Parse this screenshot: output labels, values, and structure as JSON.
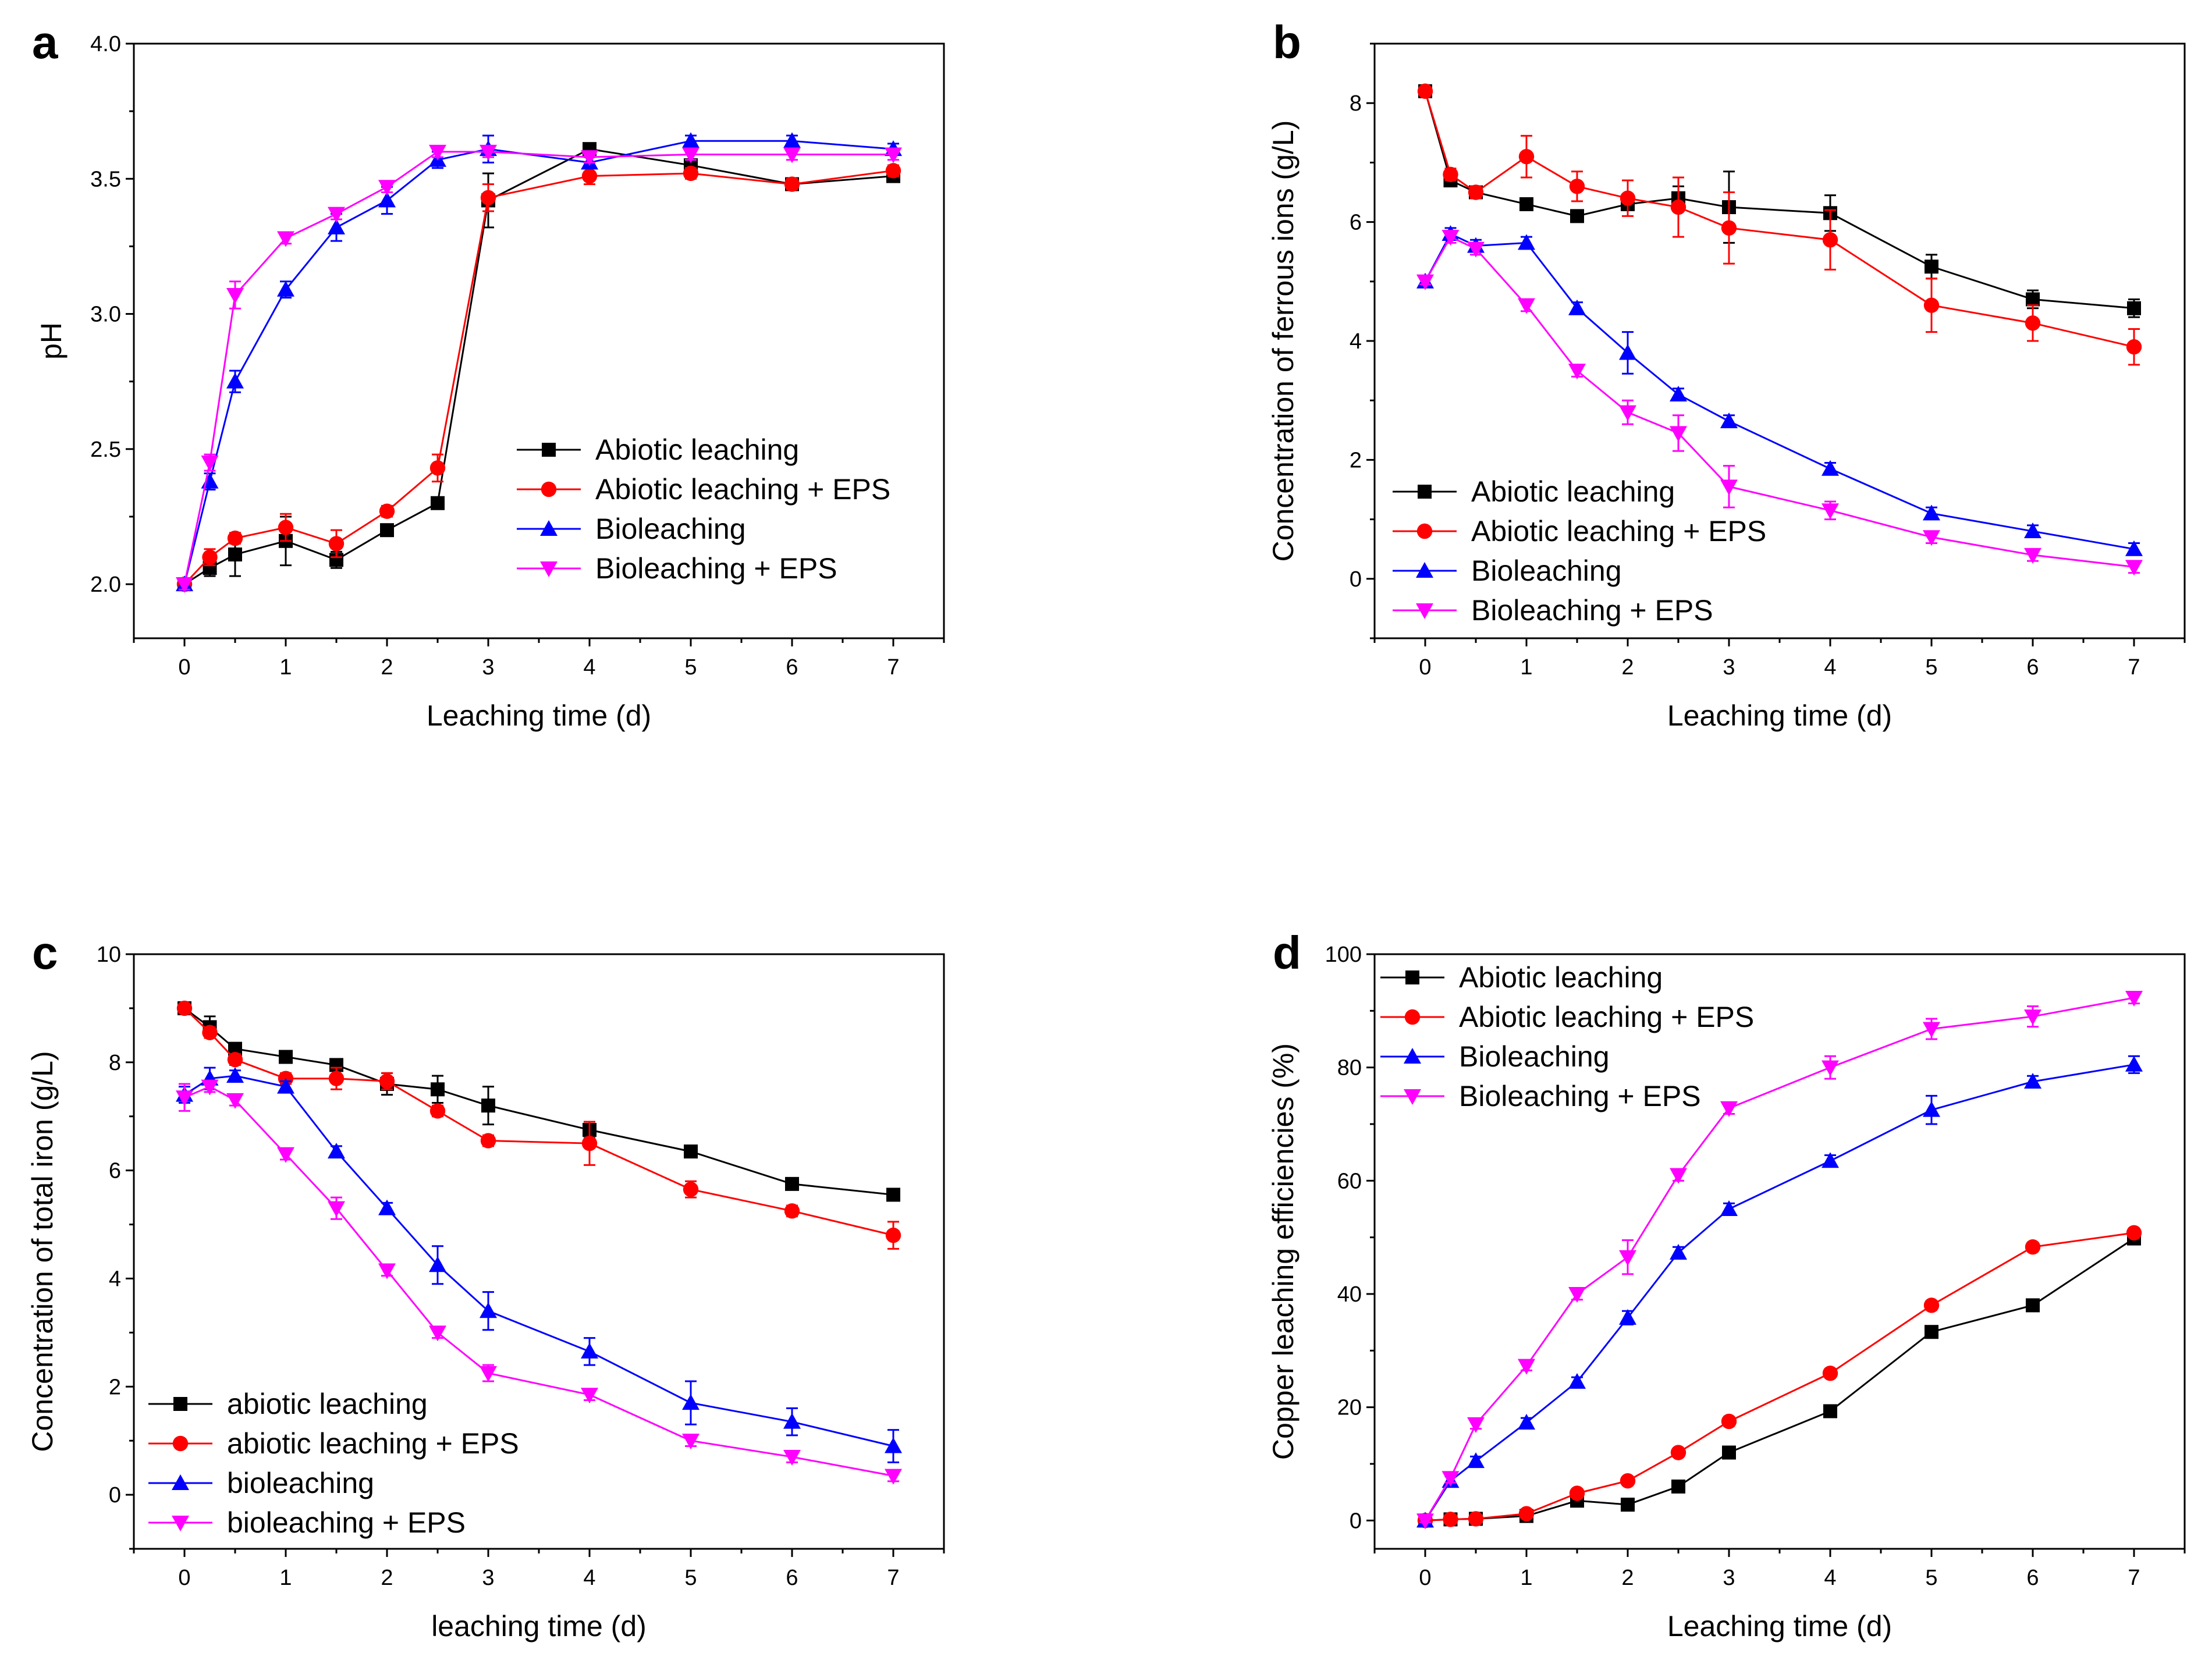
{
  "chart_data": [
    {
      "type": "line",
      "panel": "a",
      "xlabel": "Leaching time (d)",
      "ylabel": "pH",
      "xlim": [
        -0.5,
        7.5
      ],
      "ylim": [
        1.8,
        4.0
      ],
      "xticks": [
        0,
        1,
        2,
        3,
        4,
        5,
        6,
        7
      ],
      "yticks": [
        2.0,
        2.5,
        3.0,
        3.5,
        4.0
      ],
      "ytick_labels": [
        "2.0",
        "2.5",
        "3.0",
        "3.5",
        "4.0"
      ],
      "legend_position": "center-right",
      "x": [
        0,
        0.25,
        0.5,
        1,
        1.5,
        2,
        2.5,
        3,
        4,
        5,
        6,
        7
      ],
      "series": [
        {
          "name": "Abiotic leaching",
          "color": "#000000",
          "marker": "square",
          "values": [
            2.0,
            2.06,
            2.11,
            2.16,
            2.09,
            2.2,
            2.3,
            3.42,
            3.61,
            3.55,
            3.48,
            3.51
          ],
          "errors": [
            0.02,
            0.03,
            0.08,
            0.09,
            0.03,
            0.02,
            0.02,
            0.1,
            0.02,
            0.02,
            0.02,
            0.02
          ]
        },
        {
          "name": "Abiotic leaching + EPS",
          "color": "#ff0000",
          "marker": "circle",
          "values": [
            2.0,
            2.1,
            2.17,
            2.21,
            2.15,
            2.27,
            2.43,
            3.43,
            3.51,
            3.52,
            3.48,
            3.53
          ],
          "errors": [
            0.02,
            0.03,
            0.02,
            0.05,
            0.05,
            0.02,
            0.05,
            0.05,
            0.03,
            0.02,
            0.02,
            0.02
          ]
        },
        {
          "name": "Bioleaching",
          "color": "#0000ff",
          "marker": "triangle-up",
          "values": [
            2.0,
            2.38,
            2.75,
            3.09,
            3.32,
            3.42,
            3.57,
            3.61,
            3.56,
            3.64,
            3.64,
            3.61
          ],
          "errors": [
            0.02,
            0.03,
            0.04,
            0.03,
            0.05,
            0.05,
            0.03,
            0.05,
            0.02,
            0.02,
            0.02,
            0.02
          ]
        },
        {
          "name": "Bioleaching + EPS",
          "color": "#ff00ff",
          "marker": "triangle-down",
          "values": [
            2.0,
            2.45,
            3.07,
            3.28,
            3.37,
            3.47,
            3.6,
            3.6,
            3.58,
            3.59,
            3.59,
            3.59
          ],
          "errors": [
            0.02,
            0.03,
            0.05,
            0.02,
            0.02,
            0.02,
            0.02,
            0.02,
            0.02,
            0.02,
            0.02,
            0.02
          ]
        }
      ]
    },
    {
      "type": "line",
      "panel": "b",
      "xlabel": "Leaching time (d)",
      "ylabel": "Concentration of ferrous ions (g/L)",
      "xlim": [
        -0.5,
        7.5
      ],
      "ylim": [
        -1,
        9
      ],
      "xticks": [
        0,
        1,
        2,
        3,
        4,
        5,
        6,
        7
      ],
      "yticks": [
        0,
        2,
        4,
        6,
        8
      ],
      "ytick_labels": [
        "0",
        "2",
        "4",
        "6",
        "8"
      ],
      "legend_position": "bottom-left",
      "x": [
        0,
        0.25,
        0.5,
        1,
        1.5,
        2,
        2.5,
        3,
        4,
        5,
        6,
        7
      ],
      "series": [
        {
          "name": "Abiotic leaching",
          "color": "#000000",
          "marker": "square",
          "values": [
            8.2,
            6.7,
            6.5,
            6.3,
            6.1,
            6.3,
            6.4,
            6.25,
            6.15,
            5.25,
            4.7,
            4.55
          ],
          "errors": [
            0.05,
            0.1,
            0.1,
            0.1,
            0.1,
            0.1,
            0.2,
            0.6,
            0.3,
            0.2,
            0.15,
            0.15
          ]
        },
        {
          "name": "Abiotic leaching + EPS",
          "color": "#ff0000",
          "marker": "circle",
          "values": [
            8.2,
            6.8,
            6.5,
            7.1,
            6.6,
            6.4,
            6.25,
            5.9,
            5.7,
            4.6,
            4.3,
            3.9
          ],
          "errors": [
            0.05,
            0.1,
            0.1,
            0.35,
            0.25,
            0.3,
            0.5,
            0.6,
            0.5,
            0.45,
            0.3,
            0.3
          ]
        },
        {
          "name": "Bioleaching",
          "color": "#0000ff",
          "marker": "triangle-up",
          "values": [
            5.0,
            5.8,
            5.6,
            5.65,
            4.55,
            3.8,
            3.1,
            2.65,
            1.85,
            1.1,
            0.8,
            0.5
          ],
          "errors": [
            0.05,
            0.1,
            0.1,
            0.1,
            0.1,
            0.35,
            0.1,
            0.1,
            0.1,
            0.1,
            0.1,
            0.1
          ]
        },
        {
          "name": "Bioleaching + EPS",
          "color": "#ff00ff",
          "marker": "triangle-down",
          "values": [
            5.0,
            5.75,
            5.55,
            4.6,
            3.5,
            2.8,
            2.45,
            1.55,
            1.15,
            0.7,
            0.4,
            0.2
          ],
          "errors": [
            0.05,
            0.1,
            0.1,
            0.1,
            0.1,
            0.2,
            0.3,
            0.35,
            0.15,
            0.1,
            0.1,
            0.1
          ]
        }
      ]
    },
    {
      "type": "line",
      "panel": "c",
      "xlabel": "leaching time (d)",
      "ylabel": "Concentration of total iron (g/L)",
      "xlim": [
        -0.5,
        7.5
      ],
      "ylim": [
        -1,
        10
      ],
      "xticks": [
        0,
        1,
        2,
        3,
        4,
        5,
        6,
        7
      ],
      "yticks": [
        0,
        2,
        4,
        6,
        8,
        10
      ],
      "ytick_labels": [
        "0",
        "2",
        "4",
        "6",
        "8",
        "10"
      ],
      "legend_position": "bottom-left",
      "x": [
        0,
        0.25,
        0.5,
        1,
        1.5,
        2,
        2.5,
        3,
        4,
        5,
        6,
        7
      ],
      "series": [
        {
          "name": "abiotic leaching",
          "color": "#000000",
          "marker": "square",
          "values": [
            9.0,
            8.65,
            8.25,
            8.1,
            7.95,
            7.6,
            7.5,
            7.2,
            6.75,
            6.35,
            5.75,
            5.55
          ],
          "errors": [
            0.05,
            0.2,
            0.1,
            0.1,
            0.1,
            0.2,
            0.25,
            0.35,
            0.15,
            0.1,
            0.1,
            0.1
          ]
        },
        {
          "name": "abiotic leaching + EPS",
          "color": "#ff0000",
          "marker": "circle",
          "values": [
            9.0,
            8.55,
            8.05,
            7.7,
            7.7,
            7.65,
            7.1,
            6.55,
            6.5,
            5.65,
            5.25,
            4.8
          ],
          "errors": [
            0.05,
            0.1,
            0.1,
            0.1,
            0.2,
            0.15,
            0.1,
            0.1,
            0.4,
            0.15,
            0.1,
            0.25
          ]
        },
        {
          "name": "bioleaching",
          "color": "#0000ff",
          "marker": "triangle-up",
          "values": [
            7.4,
            7.7,
            7.75,
            7.55,
            6.35,
            5.3,
            4.25,
            3.4,
            2.65,
            1.7,
            1.35,
            0.9
          ],
          "errors": [
            0.15,
            0.2,
            0.1,
            0.1,
            0.1,
            0.1,
            0.35,
            0.35,
            0.25,
            0.4,
            0.25,
            0.3
          ]
        },
        {
          "name": "bioleaching + EPS",
          "color": "#ff00ff",
          "marker": "triangle-down",
          "values": [
            7.35,
            7.55,
            7.3,
            6.3,
            5.3,
            4.15,
            3.0,
            2.25,
            1.85,
            1.0,
            0.7,
            0.35
          ],
          "errors": [
            0.25,
            0.1,
            0.1,
            0.1,
            0.2,
            0.1,
            0.1,
            0.15,
            0.1,
            0.1,
            0.1,
            0.1
          ]
        }
      ]
    },
    {
      "type": "line",
      "panel": "d",
      "xlabel": "Leaching time (d)",
      "ylabel": "Copper leaching efficiencies (%)",
      "xlim": [
        -0.5,
        7.5
      ],
      "ylim": [
        -5,
        100
      ],
      "xticks": [
        0,
        1,
        2,
        3,
        4,
        5,
        6,
        7
      ],
      "yticks": [
        0,
        20,
        40,
        60,
        80,
        100
      ],
      "ytick_labels": [
        "0",
        "20",
        "40",
        "60",
        "80",
        "100"
      ],
      "legend_position": "top-left",
      "x": [
        0,
        0.25,
        0.5,
        1,
        1.5,
        2,
        2.5,
        3,
        4,
        5,
        6,
        7
      ],
      "series": [
        {
          "name": "Abiotic leaching",
          "color": "#000000",
          "marker": "square",
          "values": [
            0,
            0.2,
            0.3,
            0.8,
            3.5,
            2.8,
            6.0,
            12.0,
            19.3,
            33.3,
            38.0,
            49.8
          ],
          "errors": [
            0.3,
            0.3,
            0.3,
            0.3,
            0.5,
            0.5,
            0.5,
            0.8,
            0.8,
            0.8,
            0.8,
            0.8
          ]
        },
        {
          "name": "Abiotic leaching + EPS",
          "color": "#ff0000",
          "marker": "circle",
          "values": [
            0,
            0.2,
            0.3,
            1.2,
            4.8,
            7.0,
            12.0,
            17.5,
            26.0,
            38.0,
            48.3,
            50.8
          ],
          "errors": [
            0.3,
            0.3,
            0.3,
            0.3,
            0.5,
            0.5,
            0.5,
            0.8,
            0.8,
            0.8,
            0.8,
            0.8
          ]
        },
        {
          "name": "Bioleaching",
          "color": "#0000ff",
          "marker": "triangle-up",
          "values": [
            0,
            7.0,
            10.5,
            17.3,
            24.5,
            35.8,
            47.3,
            55.0,
            63.5,
            72.5,
            77.5,
            80.5
          ],
          "errors": [
            0.3,
            0.8,
            0.8,
            0.8,
            0.8,
            1.2,
            1.0,
            1.0,
            1.0,
            2.5,
            1.0,
            1.5
          ]
        },
        {
          "name": "Bioleaching + EPS",
          "color": "#ff00ff",
          "marker": "triangle-down",
          "values": [
            0,
            7.5,
            17.0,
            27.3,
            40.0,
            46.5,
            61.0,
            72.8,
            80.0,
            86.8,
            89.0,
            92.3
          ],
          "errors": [
            0.3,
            0.8,
            0.8,
            0.8,
            1.0,
            3.0,
            1.0,
            1.0,
            2.0,
            1.8,
            1.8,
            1.0
          ]
        }
      ]
    }
  ]
}
